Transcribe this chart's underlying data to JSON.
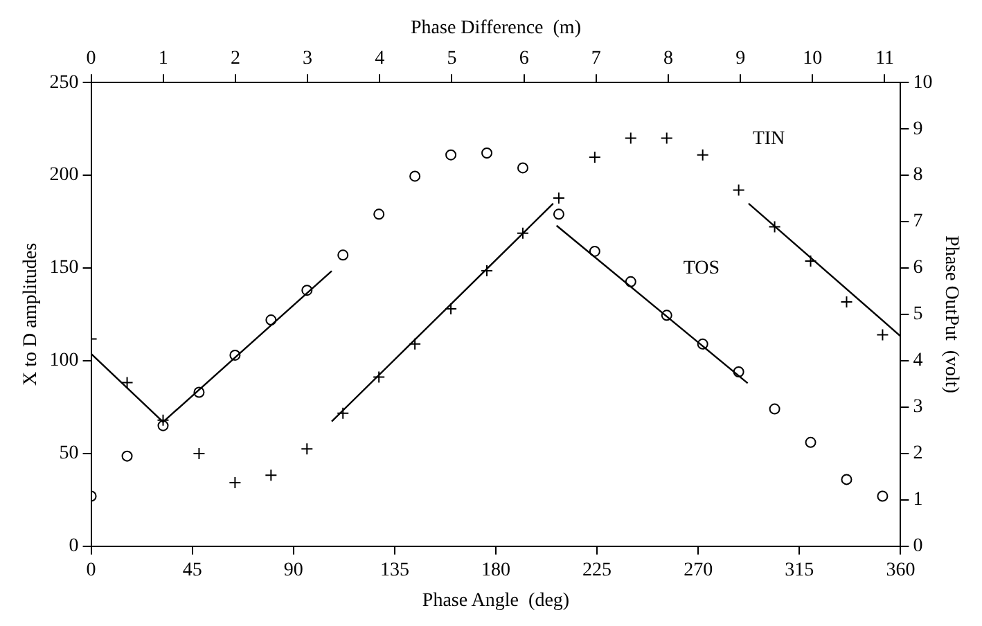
{
  "chart_data": {
    "type": "scatter",
    "xlabel": "Phase Angle  (deg)",
    "ylabel": "X to D amplitudes",
    "y2label": "Phase OutPut  (volt)",
    "x2label": "Phase Difference  (m)",
    "xlim": [
      0,
      360
    ],
    "xticks": [
      0,
      45,
      90,
      135,
      180,
      225,
      270,
      315,
      360
    ],
    "ylim": [
      0,
      250
    ],
    "yticks": [
      0,
      50,
      100,
      150,
      200,
      250
    ],
    "y2lim": [
      0,
      10
    ],
    "y2ticks": [
      0,
      1,
      2,
      3,
      4,
      5,
      6,
      7,
      8,
      9,
      10
    ],
    "x2lim": [
      0,
      11.22
    ],
    "x2ticks": [
      0,
      1,
      2,
      3,
      4,
      5,
      6,
      7,
      8,
      9,
      10,
      11
    ],
    "grid": false,
    "legend": false,
    "series": [
      {
        "name": "TOS",
        "type": "scatter",
        "marker": "circle",
        "color": "#000000",
        "x": [
          0,
          16,
          32,
          48,
          64,
          80,
          96,
          112,
          128,
          144,
          160,
          176,
          192,
          208,
          224,
          240,
          256,
          272,
          288,
          304,
          320,
          336,
          352
        ],
        "values": [
          27,
          48.6,
          65,
          83,
          103,
          122,
          138,
          157,
          179,
          199.5,
          211,
          212,
          204,
          179,
          159,
          142.6,
          124.5,
          109,
          94,
          74,
          56,
          36,
          27
        ]
      },
      {
        "name": "TIN",
        "type": "scatter",
        "marker": "cross",
        "axis": "y2",
        "color": "#000000",
        "x": [
          0,
          16,
          32,
          48,
          64,
          80,
          96,
          112,
          128,
          144,
          160,
          176,
          192,
          208,
          224,
          240,
          256,
          272,
          288,
          304,
          320,
          336,
          352
        ],
        "values": [
          4.47,
          3.53,
          2.72,
          2.0,
          1.37,
          1.53,
          2.1,
          2.87,
          3.65,
          4.36,
          5.12,
          5.94,
          6.75,
          7.51,
          8.39,
          8.8,
          8.8,
          8.44,
          7.68,
          6.89,
          6.15,
          5.27,
          4.56
        ]
      },
      {
        "type": "line",
        "axis": "y2",
        "color": "#000000",
        "x": [
          0,
          32
        ],
        "values": [
          4.15,
          2.68
        ]
      },
      {
        "type": "line",
        "color": "#000000",
        "x": [
          32,
          107
        ],
        "values": [
          67,
          148.4
        ]
      },
      {
        "type": "line",
        "axis": "y2",
        "color": "#000000",
        "x": [
          107,
          205.5
        ],
        "values": [
          2.69,
          7.39
        ]
      },
      {
        "type": "line",
        "color": "#000000",
        "x": [
          207,
          292
        ],
        "values": [
          172.9,
          87.9
        ]
      },
      {
        "type": "line",
        "axis": "y2",
        "color": "#000000",
        "x": [
          292.4,
          360
        ],
        "values": [
          7.39,
          4.53
        ]
      }
    ]
  }
}
